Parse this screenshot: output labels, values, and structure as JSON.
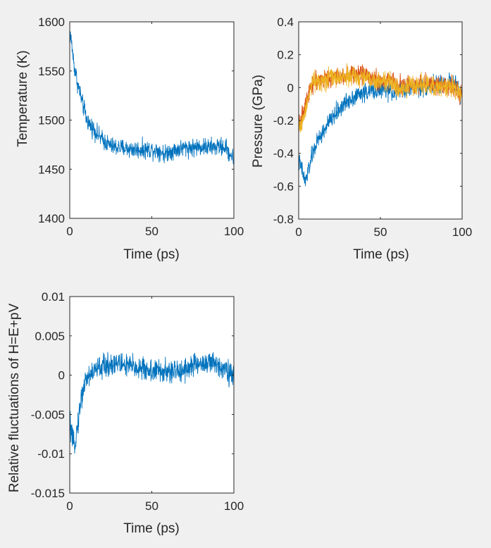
{
  "colors": {
    "background": "#f0f0f0",
    "axes_background": "#ffffff",
    "axes_edge": "#262626",
    "series_blue": "#0072bd",
    "series_orange": "#d95319",
    "series_yellow": "#edb120"
  },
  "chart_data": [
    {
      "type": "line",
      "title": "",
      "xlabel": "Time (ps)",
      "ylabel": "Temperature (K)",
      "xlim": [
        0,
        100
      ],
      "ylim": [
        1400,
        1600
      ],
      "xticks": [
        0,
        50,
        100
      ],
      "yticks": [
        1400,
        1450,
        1500,
        1550,
        1600
      ],
      "grid": false,
      "legend": "none",
      "series": [
        {
          "color": "#0072bd",
          "x": [
            0,
            1,
            2,
            3,
            4,
            5,
            6,
            7,
            8,
            9,
            10,
            12,
            14,
            16,
            18,
            20,
            23,
            26,
            30,
            35,
            40,
            45,
            50,
            55,
            58,
            60,
            65,
            70,
            75,
            80,
            85,
            90,
            95,
            100
          ],
          "y": [
            1590,
            1580,
            1565,
            1552,
            1545,
            1535,
            1530,
            1522,
            1515,
            1510,
            1502,
            1496,
            1492,
            1488,
            1483,
            1480,
            1476,
            1473,
            1472,
            1471,
            1470,
            1470,
            1470,
            1469,
            1465,
            1468,
            1470,
            1472,
            1472,
            1473,
            1472,
            1473,
            1472,
            1460
          ]
        }
      ]
    },
    {
      "type": "line",
      "title": "",
      "xlabel": "Time (ps)",
      "ylabel": "Pressure (GPa)",
      "xlim": [
        0,
        100
      ],
      "ylim": [
        -0.8,
        0.4
      ],
      "xticks": [
        0,
        50,
        100
      ],
      "yticks": [
        -0.8,
        -0.6,
        -0.4,
        -0.2,
        0,
        0.2,
        0.4
      ],
      "grid": false,
      "legend": "none",
      "series": [
        {
          "color": "#0072bd",
          "x": [
            0,
            2,
            4,
            6,
            8,
            10,
            12,
            15,
            18,
            21,
            25,
            28,
            31,
            35,
            40,
            45,
            50,
            55,
            60,
            65,
            70,
            75,
            80,
            85,
            90,
            95,
            100
          ],
          "y": [
            -0.45,
            -0.5,
            -0.58,
            -0.5,
            -0.42,
            -0.36,
            -0.32,
            -0.27,
            -0.22,
            -0.18,
            -0.13,
            -0.1,
            -0.07,
            -0.05,
            -0.03,
            -0.02,
            -0.01,
            -0.02,
            -0.03,
            -0.01,
            0.0,
            0.0,
            0.01,
            0.02,
            0.03,
            0.02,
            -0.05
          ]
        },
        {
          "color": "#d95319",
          "x": [
            0,
            2,
            4,
            6,
            8,
            10,
            15,
            20,
            25,
            30,
            35,
            40,
            45,
            50,
            55,
            60,
            65,
            70,
            75,
            80,
            85,
            90,
            95,
            100
          ],
          "y": [
            -0.2,
            -0.18,
            -0.12,
            -0.02,
            0.02,
            0.04,
            0.05,
            0.06,
            0.07,
            0.08,
            0.08,
            0.09,
            0.06,
            0.03,
            0.05,
            0.02,
            0.01,
            0.02,
            0.03,
            0.02,
            0.01,
            0.02,
            0.01,
            -0.06
          ]
        },
        {
          "color": "#edb120",
          "x": [
            0,
            2,
            4,
            6,
            8,
            10,
            15,
            20,
            25,
            30,
            35,
            40,
            45,
            50,
            55,
            60,
            65,
            70,
            75,
            80,
            85,
            90,
            95,
            100
          ],
          "y": [
            -0.25,
            -0.2,
            -0.15,
            -0.03,
            0.03,
            0.04,
            0.05,
            0.06,
            0.06,
            0.07,
            0.06,
            0.06,
            0.05,
            0.04,
            0.03,
            0.01,
            0.0,
            0.01,
            0.02,
            0.01,
            0.0,
            0.01,
            0.0,
            -0.05
          ]
        }
      ]
    },
    {
      "type": "line",
      "title": "",
      "xlabel": "Time (ps)",
      "ylabel": "Relative fluctuations of H=E+pV",
      "xlim": [
        0,
        100
      ],
      "ylim": [
        -0.015,
        0.01
      ],
      "xticks": [
        0,
        50,
        100
      ],
      "yticks": [
        -0.015,
        -0.01,
        -0.005,
        0,
        0.005,
        0.01
      ],
      "grid": false,
      "legend": "none",
      "series": [
        {
          "color": "#0072bd",
          "x": [
            0,
            1,
            2,
            3,
            4,
            5,
            6,
            7,
            8,
            10,
            12,
            15,
            18,
            22,
            26,
            30,
            35,
            40,
            45,
            50,
            55,
            60,
            65,
            70,
            75,
            80,
            85,
            90,
            95,
            100
          ],
          "y": [
            -0.006,
            -0.0075,
            -0.009,
            -0.0085,
            -0.0075,
            -0.006,
            -0.0045,
            -0.003,
            -0.002,
            -0.0005,
            0.0,
            0.0005,
            0.001,
            0.0012,
            0.0015,
            0.0015,
            0.0012,
            0.001,
            0.0008,
            0.0005,
            0.0005,
            0.0003,
            0.0005,
            0.0008,
            0.0012,
            0.0015,
            0.0015,
            0.0013,
            0.001,
            -0.0005
          ]
        }
      ]
    }
  ]
}
